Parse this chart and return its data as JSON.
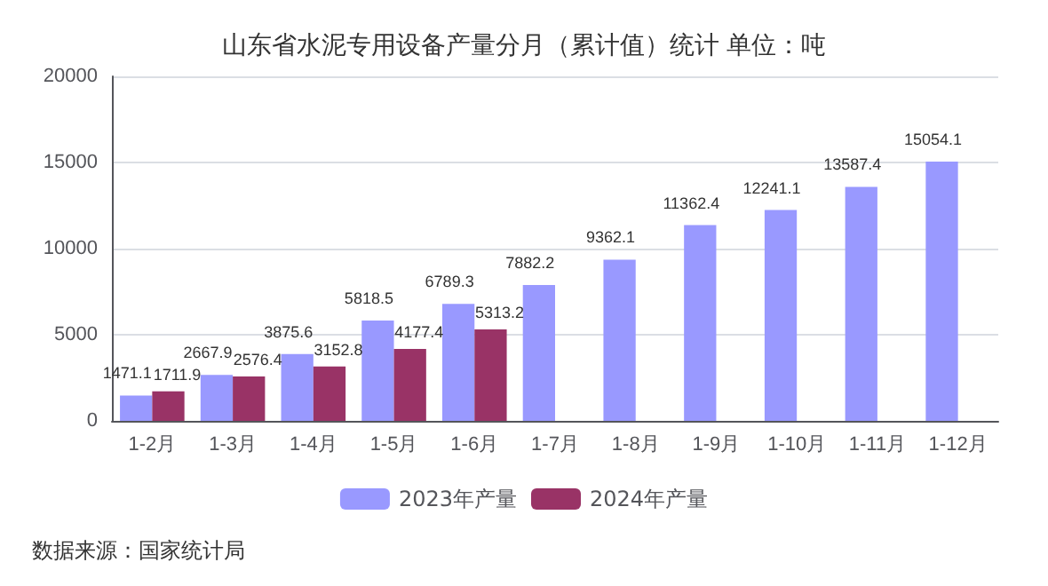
{
  "chart_data": {
    "type": "bar",
    "title": "山东省水泥专用设备产量分月（累计值）统计 单位：吨",
    "categories": [
      "1-2月",
      "1-3月",
      "1-4月",
      "1-5月",
      "1-6月",
      "1-7月",
      "1-8月",
      "1-9月",
      "1-10月",
      "1-11月",
      "1-12月"
    ],
    "series": [
      {
        "name": "2023年产量",
        "color": "#9999ff",
        "values": [
          1471.1,
          2667.9,
          3875.6,
          5818.5,
          6789.3,
          7882.2,
          9362.1,
          11362.4,
          12241.1,
          13587.4,
          15054.1
        ]
      },
      {
        "name": "2024年产量",
        "color": "#993366",
        "values": [
          1711.9,
          2576.4,
          3152.8,
          4177.4,
          5313.2,
          null,
          null,
          null,
          null,
          null,
          null
        ]
      }
    ],
    "ylim": [
      0,
      20000
    ],
    "yticks": [
      0,
      5000,
      10000,
      15000,
      20000
    ],
    "grid": "y",
    "legend": "bottom",
    "data_labels": true,
    "annotations": [
      "数据来源：国家统计局"
    ]
  }
}
